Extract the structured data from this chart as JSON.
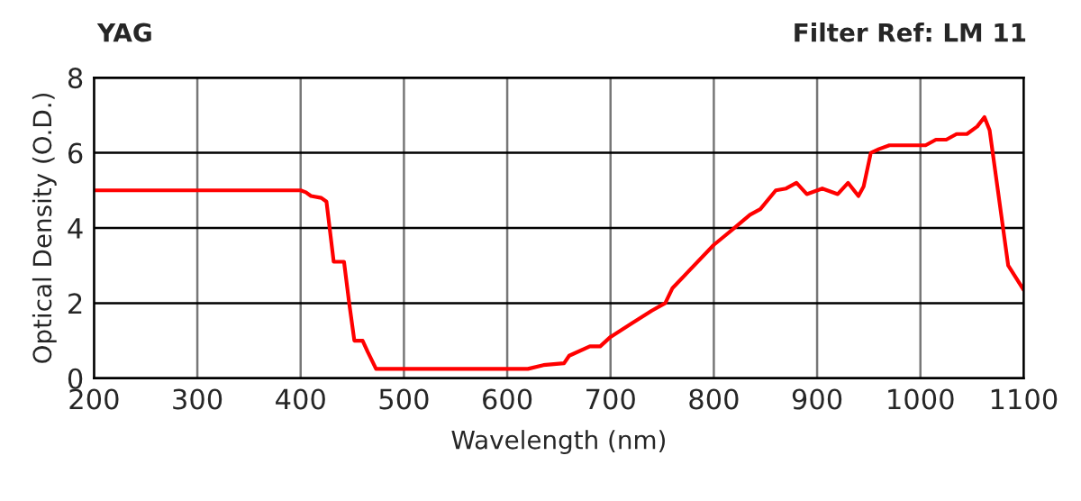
{
  "chart_data": {
    "type": "line",
    "title": "YAG",
    "subtitle": "Filter Ref: LM 11",
    "xlabel": "Wavelength (nm)",
    "ylabel": "Optical Density (O.D.)",
    "x": [
      200,
      400,
      405,
      410,
      420,
      425,
      432,
      442,
      447,
      452,
      460,
      465,
      473,
      620,
      635,
      655,
      660,
      680,
      690,
      700,
      720,
      740,
      753,
      760,
      800,
      820,
      835,
      845,
      860,
      870,
      880,
      890,
      905,
      920,
      930,
      940,
      945,
      952,
      960,
      970,
      1005,
      1015,
      1025,
      1035,
      1045,
      1055,
      1062,
      1067,
      1085,
      1100
    ],
    "series": [
      {
        "color": "#ff0000",
        "values": [
          5,
          5,
          4.95,
          4.85,
          4.8,
          4.7,
          3.1,
          3.1,
          2.0,
          1.0,
          1.0,
          0.7,
          0.25,
          0.25,
          0.35,
          0.4,
          0.6,
          0.85,
          0.85,
          1.1,
          1.45,
          1.8,
          2.0,
          2.4,
          3.55,
          4.0,
          4.35,
          4.5,
          5.0,
          5.05,
          5.2,
          4.9,
          5.05,
          4.9,
          5.2,
          4.85,
          5.1,
          6.0,
          6.1,
          6.2,
          6.2,
          6.35,
          6.35,
          6.5,
          6.5,
          6.7,
          6.95,
          6.6,
          3.0,
          2.35
        ]
      }
    ],
    "xlim": [
      200,
      1100
    ],
    "xticks": [
      200,
      300,
      400,
      500,
      600,
      700,
      800,
      900,
      1000,
      1100
    ],
    "ylim": [
      0,
      8
    ],
    "yticks": [
      0,
      2,
      4,
      6,
      8
    ],
    "grid": true
  }
}
